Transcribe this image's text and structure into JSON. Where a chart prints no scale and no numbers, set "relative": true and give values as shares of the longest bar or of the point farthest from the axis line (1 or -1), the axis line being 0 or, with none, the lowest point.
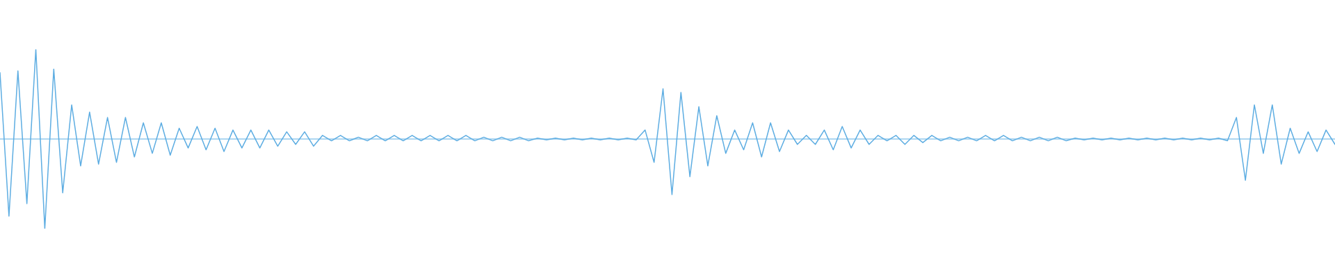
{
  "chart_data": {
    "type": "line",
    "relative": true,
    "color": "#5dade2",
    "ref_lines": [
      {
        "axis": "y",
        "value": 0,
        "color": "#5dade2"
      }
    ],
    "categories": [
      null,
      null,
      null,
      null,
      null,
      null,
      null,
      null,
      null,
      null,
      null,
      null,
      null,
      null,
      null,
      null,
      null,
      null,
      null,
      null,
      null,
      null,
      null,
      null,
      null,
      null,
      null,
      null,
      null,
      null,
      null,
      null,
      null,
      null,
      null,
      null,
      null,
      null,
      null,
      null,
      null,
      null,
      null,
      null,
      null,
      null,
      null,
      null,
      null,
      null,
      null,
      null,
      null,
      null,
      null,
      null,
      null,
      null,
      null,
      null,
      null,
      null,
      null,
      null,
      null,
      null,
      null,
      null,
      null,
      null,
      null,
      null,
      null,
      null,
      null,
      null,
      null,
      null,
      null,
      null,
      null,
      null,
      null,
      null,
      null,
      null,
      null,
      null,
      null,
      null,
      null,
      null,
      null,
      null,
      null,
      null,
      null,
      null,
      null,
      null,
      null,
      null,
      null,
      null,
      null,
      null,
      null,
      null,
      null,
      null,
      null,
      null,
      null,
      null,
      null,
      null,
      null,
      null,
      null,
      null,
      null,
      null,
      null,
      null,
      null,
      null,
      null,
      null,
      null,
      null,
      null,
      null,
      null,
      null,
      null,
      null,
      null,
      null,
      null,
      null,
      null,
      null,
      null,
      null,
      null,
      null,
      null,
      null,
      null,
      null
    ],
    "values": [
      0.74,
      -0.86,
      0.76,
      -0.72,
      1,
      -1,
      0.78,
      -0.6,
      0.38,
      -0.3,
      0.3,
      -0.28,
      0.24,
      -0.26,
      0.24,
      -0.2,
      0.18,
      -0.16,
      0.18,
      -0.18,
      0.12,
      -0.1,
      0.14,
      -0.12,
      0.12,
      -0.14,
      0.1,
      -0.1,
      0.1,
      -0.1,
      0.1,
      -0.08,
      0.08,
      -0.06,
      0.08,
      -0.08,
      0.04,
      -0.02,
      0.04,
      -0.02,
      0.02,
      -0.02,
      0.04,
      -0.02,
      0.04,
      -0.02,
      0.04,
      -0.02,
      0.04,
      -0.02,
      0.04,
      -0.02,
      0.04,
      -0.02,
      0.02,
      -0.02,
      0.02,
      -0.02,
      0.02,
      -0.02,
      0.01,
      -0.01,
      0.01,
      -0.01,
      0.01,
      -0.01,
      0.01,
      -0.01,
      0.01,
      -0.01,
      0.01,
      -0.01,
      0.1,
      -0.26,
      0.56,
      -0.62,
      0.52,
      -0.42,
      0.36,
      -0.3,
      0.26,
      -0.16,
      0.1,
      -0.12,
      0.18,
      -0.2,
      0.18,
      -0.14,
      0.1,
      -0.06,
      0.04,
      -0.06,
      0.1,
      -0.12,
      0.14,
      -0.1,
      0.1,
      -0.06,
      0.04,
      -0.02,
      0.04,
      -0.06,
      0.04,
      -0.04,
      0.04,
      -0.02,
      0.02,
      -0.02,
      0.02,
      -0.02,
      0.04,
      -0.02,
      0.04,
      -0.02,
      0.02,
      -0.02,
      0.02,
      -0.02,
      0.02,
      -0.02,
      0.01,
      -0.01,
      0.01,
      -0.01,
      0.01,
      -0.01,
      0.01,
      -0.01,
      0.01,
      -0.01,
      0.01,
      -0.01,
      0.01,
      -0.01,
      0.01,
      -0.01,
      0.01,
      -0.02,
      0.24,
      -0.46,
      0.38,
      -0.16,
      0.38,
      -0.28,
      0.12,
      -0.16,
      0.08,
      -0.14,
      0.1,
      -0.06
    ]
  }
}
